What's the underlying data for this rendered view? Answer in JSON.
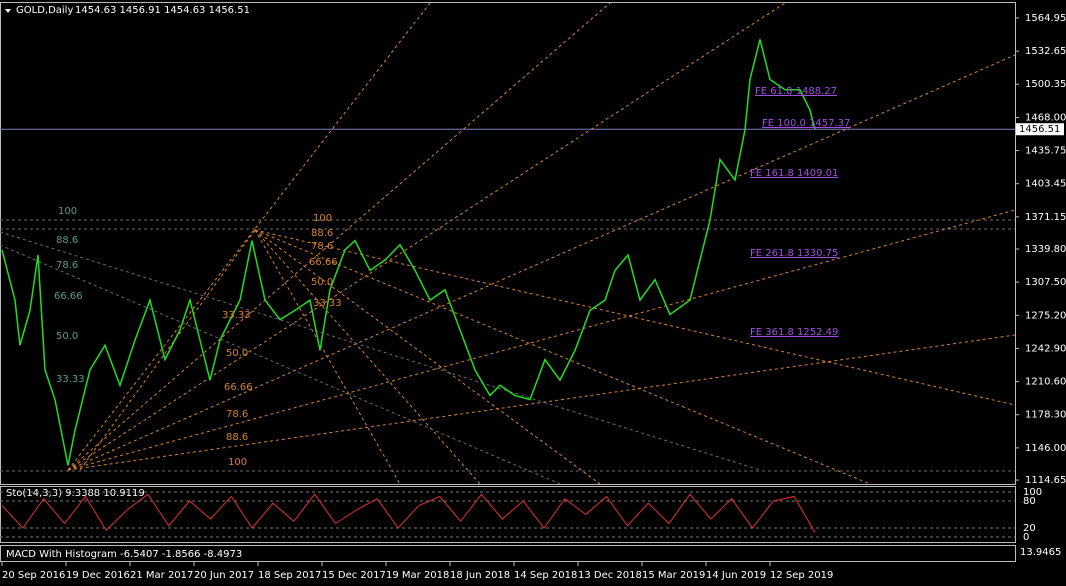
{
  "chart_data": {
    "type": "line",
    "title": "GOLD,Daily",
    "subtitle": "1454.63 1456.91 1454.63 1456.51",
    "x": [
      2,
      15,
      20,
      30,
      38,
      45,
      55,
      68,
      75,
      90,
      105,
      120,
      135,
      150,
      165,
      180,
      190,
      200,
      210,
      220,
      240,
      252,
      265,
      280,
      295,
      310,
      320,
      330,
      345,
      355,
      370,
      385,
      400,
      415,
      430,
      445,
      460,
      475,
      490,
      500,
      515,
      530,
      545,
      560,
      575,
      590,
      605,
      615,
      628,
      640,
      655,
      670,
      690,
      700,
      710,
      720,
      735,
      745,
      750,
      760,
      770,
      785,
      800,
      810,
      815
    ],
    "series": [
      {
        "color": "#22dd22",
        "values": [
          1339,
          1290,
          1246,
          1280,
          1334,
          1222,
          1193,
          1129,
          1163,
          1222,
          1246,
          1207,
          1251,
          1290,
          1232,
          1261,
          1290,
          1251,
          1212,
          1251,
          1290,
          1348,
          1290,
          1271,
          1280,
          1290,
          1241,
          1300,
          1339,
          1348,
          1319,
          1329,
          1344,
          1319,
          1290,
          1300,
          1261,
          1222,
          1197,
          1207,
          1197,
          1193,
          1232,
          1212,
          1241,
          1280,
          1290,
          1319,
          1334,
          1290,
          1310,
          1276,
          1290,
          1329,
          1368,
          1427,
          1407,
          1456,
          1505,
          1544,
          1505,
          1495,
          1495,
          1475,
          1456.51
        ]
      }
    ],
    "xlim": [
      0,
      1015
    ],
    "xticks": [
      {
        "value": 2,
        "label": "20 Sep 2016"
      },
      {
        "value": 66,
        "label": "19 Dec 2016"
      },
      {
        "value": 130,
        "label": "21 Mar 2017"
      },
      {
        "value": 194,
        "label": "20 Jun 2017"
      },
      {
        "value": 258,
        "label": "18 Sep 2017"
      },
      {
        "value": 322,
        "label": "15 Dec 2017"
      },
      {
        "value": 386,
        "label": "19 Mar 2018"
      },
      {
        "value": 450,
        "label": "18 Jun 2018"
      },
      {
        "value": 514,
        "label": "14 Sep 2018"
      },
      {
        "value": 578,
        "label": "13 Dec 2018"
      },
      {
        "value": 642,
        "label": "15 Mar 2019"
      },
      {
        "value": 706,
        "label": "14 Jun 2019"
      },
      {
        "value": 770,
        "label": "12 Sep 2019"
      }
    ],
    "ylim": [
      1110.8,
      1580.5
    ],
    "yticks": [
      1114.65,
      {
        "value": 1146,
        "label": "1146.00"
      },
      {
        "value": 1178.3,
        "label": "1178.30"
      },
      {
        "value": 1210.6,
        "label": "1210.60"
      },
      {
        "value": 1242.9,
        "label": "1242.90"
      },
      {
        "value": 1275.2,
        "label": "1275.20"
      },
      {
        "value": 1307.5,
        "label": "1307.50"
      },
      {
        "value": 1339.8,
        "label": "1339.80"
      },
      1371.15,
      1403.45,
      1435.75,
      {
        "value": 1468,
        "label": "1468.00"
      },
      1500.35,
      1532.65,
      1564.95
    ],
    "current_price": 1456.51,
    "fe_labels": [
      "FE 61.8 1488.27",
      "FE 100.0 1457.37",
      "FE 161.8 1409.01",
      "FE 261.8 1330.75",
      "FE 361.8 1252.49"
    ],
    "fib_left": [
      "100",
      "88.6",
      "78.6",
      "66.66",
      "50.0",
      "33.33"
    ],
    "fib_mid": [
      "100",
      "88.6",
      "78.6",
      "66.66",
      "50.0",
      "33.33"
    ],
    "fib_low": [
      "33.33",
      "50.0",
      "66.66",
      "78.6",
      "88.6",
      "100"
    ],
    "stochastic": {
      "title": "Sto(14,3,3) 9.3388 10.9119",
      "color": "#e03030",
      "values": [
        70,
        20,
        85,
        30,
        90,
        15,
        60,
        95,
        25,
        80,
        40,
        90,
        20,
        75,
        35,
        95,
        30,
        60,
        85,
        20,
        70,
        90,
        35,
        95,
        40,
        80,
        20,
        85,
        50,
        90,
        25,
        75,
        30,
        95,
        40,
        85,
        20,
        80,
        90,
        10
      ],
      "ylim": [
        0,
        100
      ],
      "yticks": [
        0,
        20,
        80,
        100
      ]
    },
    "macd": {
      "title": "MACD With Histogram -6.5407 -1.8566 -8.4973",
      "axis_label": "13.9465"
    }
  }
}
